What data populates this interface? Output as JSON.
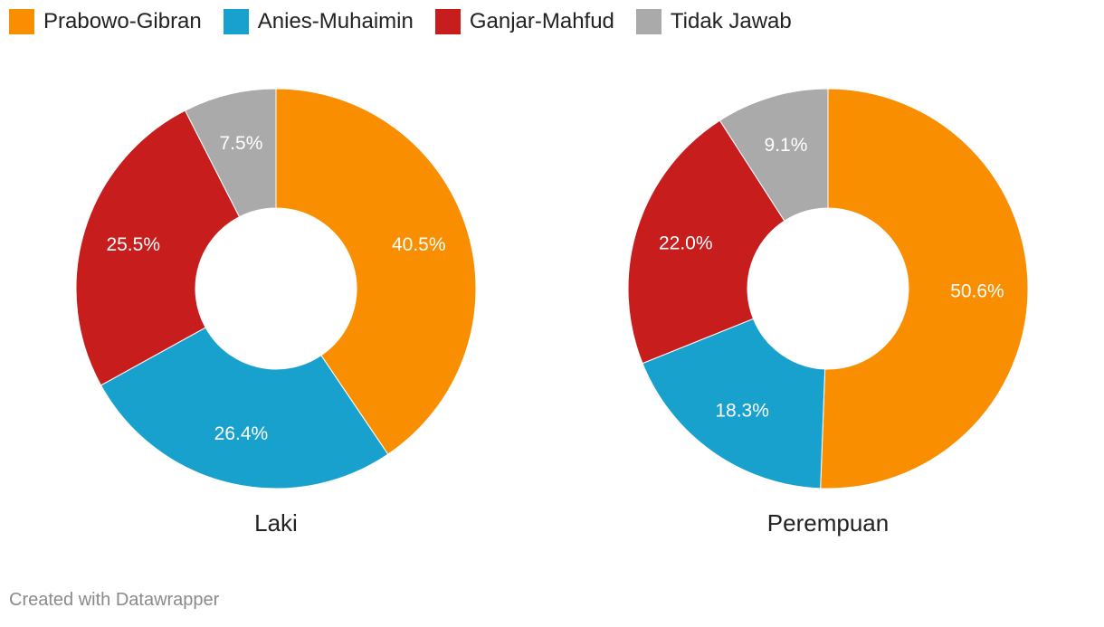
{
  "chart_data": {
    "type": "pie",
    "subtype": "donut",
    "legend_placement": "top-left",
    "categories": [
      "Prabowo-Gibran",
      "Anies-Muhaimin",
      "Ganjar-Mahfud",
      "Tidak Jawab"
    ],
    "colors": [
      "#f98e01",
      "#18a1cd",
      "#c71e1d",
      "#aaaaaa"
    ],
    "charts": [
      {
        "label": "Laki",
        "values": [
          40.5,
          26.4,
          25.5,
          7.5
        ],
        "value_labels": [
          "40.5%",
          "26.4%",
          "25.5%",
          "7.5%"
        ]
      },
      {
        "label": "Perempuan",
        "values": [
          50.6,
          18.3,
          22.0,
          9.1
        ],
        "value_labels": [
          "50.6%",
          "18.3%",
          "22.0%",
          "9.1%"
        ]
      }
    ]
  },
  "footer": {
    "credit": "Created with Datawrapper"
  }
}
